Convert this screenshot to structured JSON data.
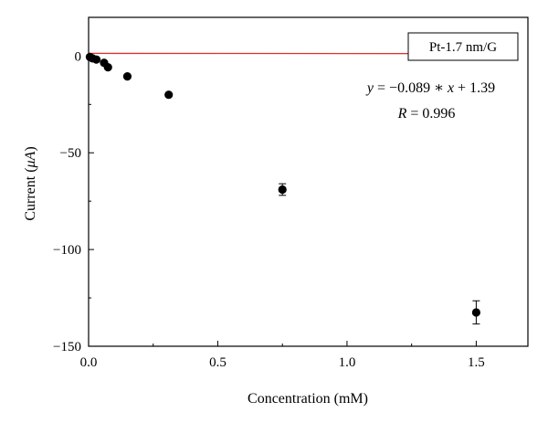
{
  "chart_data": {
    "type": "scatter",
    "xlabel": "Concentration (mM)",
    "ylabel_prefix": "Current (",
    "ylabel_unit": "μA",
    "ylabel_suffix": ")",
    "xlim": [
      0,
      1.7
    ],
    "ylim": [
      -150,
      20
    ],
    "xticks": [
      0.0,
      0.5,
      1.0,
      1.5
    ],
    "xtick_labels": [
      "0.0",
      "0.5",
      "1.0",
      "1.5"
    ],
    "yticks": [
      0,
      -50,
      -100,
      -150
    ],
    "ytick_labels": [
      "0",
      "−50",
      "−100",
      "−150"
    ],
    "points": [
      {
        "x": 0.005,
        "y": -0.5,
        "err": 0
      },
      {
        "x": 0.015,
        "y": -1.2,
        "err": 0
      },
      {
        "x": 0.03,
        "y": -1.8,
        "err": 0
      },
      {
        "x": 0.06,
        "y": -3.5,
        "err": 0
      },
      {
        "x": 0.075,
        "y": -5.8,
        "err": 0
      },
      {
        "x": 0.15,
        "y": -10.5,
        "err": 0
      },
      {
        "x": 0.31,
        "y": -20.0,
        "err": 0
      },
      {
        "x": 0.75,
        "y": -69.0,
        "err": 3.0
      },
      {
        "x": 1.5,
        "y": -132.5,
        "err": 6.0
      }
    ],
    "fit_line": {
      "slope": -0.089,
      "intercept": 1.39,
      "x_range": [
        0,
        1.5
      ],
      "color": "#e0302a"
    },
    "marker_color": "#000000",
    "legend_label": "Pt-1.7 nm/G",
    "legend_position": "top-right",
    "equation": {
      "y_var": "y",
      "eq": " = −0.089 ∗ ",
      "x_var": "x",
      "tail": " + 1.39"
    },
    "r_value": {
      "r_var": "R",
      "text": " = 0.996"
    },
    "grid": false
  }
}
